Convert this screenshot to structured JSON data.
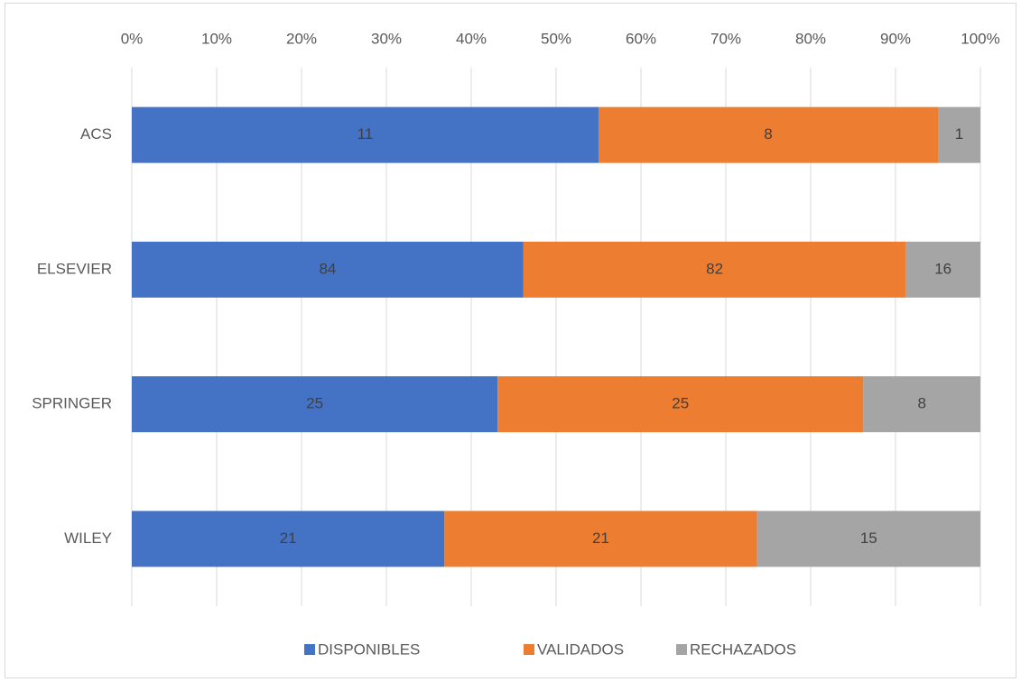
{
  "chart_data": {
    "type": "bar",
    "orientation": "horizontal",
    "stacking": "percent",
    "categories": [
      "ACS",
      "ELSEVIER",
      "SPRINGER",
      "WILEY"
    ],
    "series": [
      {
        "name": "DISPONIBLES",
        "color": "#4472c4",
        "values": [
          11,
          84,
          25,
          21
        ]
      },
      {
        "name": "VALIDADOS",
        "color": "#ed7d31",
        "values": [
          8,
          82,
          25,
          21
        ]
      },
      {
        "name": "RECHAZADOS",
        "color": "#a5a5a5",
        "values": [
          1,
          16,
          8,
          15
        ]
      }
    ],
    "xlim": [
      0,
      100
    ],
    "xticks": [
      {
        "value": 0,
        "label": "0%"
      },
      {
        "value": 10,
        "label": "10%"
      },
      {
        "value": 20,
        "label": "20%"
      },
      {
        "value": 30,
        "label": "30%"
      },
      {
        "value": 40,
        "label": "40%"
      },
      {
        "value": 50,
        "label": "50%"
      },
      {
        "value": 60,
        "label": "60%"
      },
      {
        "value": 70,
        "label": "70%"
      },
      {
        "value": 80,
        "label": "80%"
      },
      {
        "value": 90,
        "label": "90%"
      },
      {
        "value": 100,
        "label": "100%"
      }
    ],
    "grid": true,
    "legend": "bottom"
  }
}
